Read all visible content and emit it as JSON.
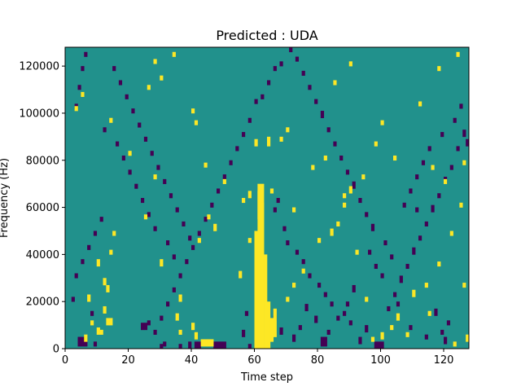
{
  "chart_data": {
    "type": "heatmap",
    "title": "Predicted : UDA",
    "xlabel": "Time step",
    "ylabel": "Frequency (Hz)",
    "xlim": [
      0,
      128
    ],
    "ylim": [
      0,
      128000
    ],
    "x_ticks": [
      0,
      20,
      40,
      60,
      80,
      100,
      120
    ],
    "x_tick_labels": [
      "0",
      "20",
      "40",
      "60",
      "80",
      "100",
      "120"
    ],
    "y_ticks": [
      0,
      20000,
      40000,
      60000,
      80000,
      100000,
      120000
    ],
    "y_tick_labels": [
      "0",
      "20000",
      "40000",
      "60000",
      "80000",
      "100000",
      "120000"
    ],
    "n_time": 128,
    "n_freq": 128,
    "freq_bin_hz": 1000,
    "colormap": "viridis",
    "levels": [
      {
        "name": "low",
        "color": "#440154"
      },
      {
        "name": "mid",
        "color": "#21918c"
      },
      {
        "name": "high",
        "color": "#fde725"
      }
    ],
    "background_level": "mid",
    "grid": false,
    "high_cells": [
      [
        60,
        0,
        50
      ],
      [
        61,
        0,
        70
      ],
      [
        62,
        0,
        70
      ],
      [
        63,
        0,
        40
      ],
      [
        64,
        0,
        20
      ],
      [
        65,
        3,
        10
      ],
      [
        66,
        5,
        12
      ],
      [
        62,
        40,
        22
      ],
      [
        61,
        55,
        12
      ],
      [
        43,
        1,
        3
      ],
      [
        44,
        1,
        3
      ],
      [
        45,
        1,
        3
      ],
      [
        46,
        1,
        3
      ],
      [
        41,
        4,
        3
      ],
      [
        40,
        8,
        3
      ],
      [
        36,
        6,
        2
      ],
      [
        35,
        12,
        3
      ],
      [
        10,
        6,
        3
      ],
      [
        11,
        6,
        2
      ],
      [
        13,
        10,
        3
      ],
      [
        14,
        10,
        3
      ],
      [
        12,
        15,
        3
      ],
      [
        13,
        24,
        3
      ],
      [
        12,
        27,
        3
      ],
      [
        6,
        3,
        3
      ],
      [
        8,
        10,
        2
      ],
      [
        7,
        20,
        3
      ],
      [
        10,
        35,
        3
      ],
      [
        14,
        40,
        2
      ],
      [
        15,
        48,
        2
      ],
      [
        25,
        55,
        2
      ],
      [
        30,
        35,
        3
      ],
      [
        36,
        20,
        3
      ],
      [
        42,
        45,
        2
      ],
      [
        47,
        50,
        3
      ],
      [
        45,
        55,
        2
      ],
      [
        55,
        30,
        3
      ],
      [
        58,
        45,
        2
      ],
      [
        70,
        20,
        2
      ],
      [
        72,
        26,
        2
      ],
      [
        75,
        32,
        2
      ],
      [
        80,
        45,
        2
      ],
      [
        84,
        48,
        3
      ],
      [
        86,
        52,
        2
      ],
      [
        88,
        60,
        2
      ],
      [
        90,
        66,
        3
      ],
      [
        92,
        40,
        2
      ],
      [
        95,
        20,
        2
      ],
      [
        97,
        3,
        2
      ],
      [
        100,
        4,
        3
      ],
      [
        103,
        8,
        2
      ],
      [
        105,
        12,
        3
      ],
      [
        110,
        22,
        3
      ],
      [
        114,
        26,
        2
      ],
      [
        118,
        35,
        2
      ],
      [
        122,
        48,
        2
      ],
      [
        125,
        60,
        2
      ],
      [
        127,
        3,
        3
      ],
      [
        123,
        1,
        2
      ],
      [
        115,
        14,
        2
      ],
      [
        108,
        5,
        2
      ],
      [
        126,
        26,
        2
      ],
      [
        30,
        114,
        2
      ],
      [
        28,
        121,
        2
      ],
      [
        34,
        124,
        2
      ],
      [
        26,
        110,
        2
      ],
      [
        40,
        100,
        2
      ],
      [
        41,
        95,
        2
      ],
      [
        58,
        64,
        3
      ],
      [
        60,
        86,
        3
      ],
      [
        64,
        86,
        4
      ],
      [
        68,
        88,
        2
      ],
      [
        70,
        92,
        2
      ],
      [
        85,
        112,
        2
      ],
      [
        90,
        120,
        2
      ],
      [
        100,
        95,
        2
      ],
      [
        112,
        103,
        2
      ],
      [
        118,
        118,
        2
      ],
      [
        124,
        124,
        2
      ],
      [
        3,
        101,
        2
      ],
      [
        5,
        107,
        2
      ],
      [
        14,
        96,
        2
      ],
      [
        20,
        82,
        2
      ],
      [
        28,
        72,
        2
      ],
      [
        44,
        77,
        2
      ],
      [
        50,
        70,
        2
      ],
      [
        56,
        62,
        2
      ],
      [
        65,
        66,
        2
      ],
      [
        72,
        58,
        2
      ],
      [
        78,
        76,
        2
      ],
      [
        82,
        80,
        2
      ],
      [
        88,
        64,
        2
      ],
      [
        94,
        72,
        2
      ],
      [
        98,
        86,
        2
      ],
      [
        104,
        80,
        2
      ],
      [
        116,
        76,
        2
      ],
      [
        120,
        70,
        2
      ],
      [
        126,
        78,
        2
      ]
    ],
    "low_cells": [
      [
        39,
        0,
        3
      ],
      [
        41,
        0,
        3
      ],
      [
        42,
        0,
        3
      ],
      [
        47,
        0,
        3
      ],
      [
        48,
        0,
        3
      ],
      [
        49,
        0,
        3
      ],
      [
        50,
        0,
        3
      ],
      [
        30,
        0,
        2
      ],
      [
        36,
        0,
        2
      ],
      [
        4,
        1,
        4
      ],
      [
        5,
        1,
        4
      ],
      [
        6,
        1,
        4
      ],
      [
        9,
        1,
        2
      ],
      [
        24,
        8,
        3
      ],
      [
        25,
        8,
        3
      ],
      [
        26,
        10,
        2
      ],
      [
        31,
        1,
        2
      ],
      [
        58,
        0,
        2
      ],
      [
        56,
        5,
        3
      ],
      [
        57,
        14,
        2
      ],
      [
        66,
        12,
        2
      ],
      [
        68,
        6,
        3
      ],
      [
        72,
        3,
        3
      ],
      [
        74,
        8,
        2
      ],
      [
        76,
        16,
        3
      ],
      [
        79,
        11,
        3
      ],
      [
        81,
        1,
        4
      ],
      [
        82,
        1,
        4
      ],
      [
        83,
        6,
        2
      ],
      [
        86,
        12,
        2
      ],
      [
        89,
        18,
        2
      ],
      [
        91,
        24,
        3
      ],
      [
        93,
        2,
        3
      ],
      [
        95,
        7,
        3
      ],
      [
        98,
        0,
        3
      ],
      [
        99,
        0,
        3
      ],
      [
        100,
        0,
        3
      ],
      [
        102,
        16,
        2
      ],
      [
        104,
        22,
        2
      ],
      [
        106,
        28,
        3
      ],
      [
        108,
        34,
        2
      ],
      [
        110,
        40,
        3
      ],
      [
        112,
        46,
        2
      ],
      [
        114,
        52,
        2
      ],
      [
        116,
        58,
        3
      ],
      [
        118,
        64,
        2
      ],
      [
        120,
        70,
        3
      ],
      [
        122,
        76,
        2
      ],
      [
        124,
        84,
        2
      ],
      [
        126,
        90,
        3
      ],
      [
        127,
        86,
        3
      ],
      [
        120,
        2,
        3
      ],
      [
        119,
        6,
        2
      ],
      [
        121,
        10,
        2
      ],
      [
        117,
        14,
        3
      ],
      [
        114,
        4,
        2
      ],
      [
        109,
        8,
        2
      ],
      [
        105,
        18,
        2
      ],
      [
        103,
        38,
        2
      ],
      [
        101,
        44,
        2
      ],
      [
        97,
        50,
        3
      ],
      [
        95,
        56,
        2
      ],
      [
        93,
        62,
        2
      ],
      [
        91,
        68,
        3
      ],
      [
        89,
        74,
        2
      ],
      [
        87,
        80,
        2
      ],
      [
        85,
        86,
        2
      ],
      [
        83,
        92,
        2
      ],
      [
        81,
        98,
        3
      ],
      [
        79,
        104,
        2
      ],
      [
        77,
        110,
        2
      ],
      [
        75,
        116,
        2
      ],
      [
        73,
        122,
        2
      ],
      [
        71,
        126,
        2
      ],
      [
        68,
        120,
        2
      ],
      [
        66,
        118,
        2
      ],
      [
        64,
        112,
        2
      ],
      [
        62,
        106,
        2
      ],
      [
        60,
        104,
        2
      ],
      [
        58,
        96,
        2
      ],
      [
        56,
        90,
        2
      ],
      [
        54,
        84,
        2
      ],
      [
        52,
        78,
        2
      ],
      [
        50,
        72,
        2
      ],
      [
        48,
        66,
        2
      ],
      [
        46,
        60,
        2
      ],
      [
        44,
        54,
        2
      ],
      [
        42,
        48,
        2
      ],
      [
        40,
        42,
        2
      ],
      [
        38,
        36,
        2
      ],
      [
        36,
        30,
        2
      ],
      [
        34,
        24,
        2
      ],
      [
        32,
        18,
        2
      ],
      [
        30,
        12,
        2
      ],
      [
        28,
        6,
        2
      ],
      [
        3,
        102,
        2
      ],
      [
        4,
        110,
        2
      ],
      [
        5,
        118,
        2
      ],
      [
        6,
        124,
        2
      ],
      [
        12,
        92,
        2
      ],
      [
        16,
        86,
        2
      ],
      [
        18,
        80,
        2
      ],
      [
        20,
        74,
        2
      ],
      [
        22,
        68,
        2
      ],
      [
        24,
        62,
        2
      ],
      [
        26,
        56,
        2
      ],
      [
        28,
        50,
        2
      ],
      [
        32,
        44,
        2
      ],
      [
        34,
        38,
        2
      ],
      [
        15,
        118,
        2
      ],
      [
        17,
        112,
        2
      ],
      [
        19,
        106,
        2
      ],
      [
        21,
        100,
        2
      ],
      [
        23,
        94,
        2
      ],
      [
        25,
        88,
        2
      ],
      [
        27,
        82,
        2
      ],
      [
        29,
        76,
        2
      ],
      [
        31,
        70,
        2
      ],
      [
        33,
        64,
        2
      ],
      [
        35,
        58,
        2
      ],
      [
        37,
        52,
        2
      ],
      [
        39,
        46,
        2
      ],
      [
        11,
        54,
        2
      ],
      [
        9,
        48,
        2
      ],
      [
        7,
        42,
        2
      ],
      [
        5,
        36,
        2
      ],
      [
        3,
        30,
        2
      ],
      [
        2,
        20,
        2
      ],
      [
        8,
        14,
        2
      ],
      [
        66,
        58,
        2
      ],
      [
        67,
        62,
        2
      ],
      [
        69,
        50,
        2
      ],
      [
        70,
        44,
        2
      ],
      [
        73,
        40,
        2
      ],
      [
        75,
        36,
        2
      ],
      [
        77,
        30,
        2
      ],
      [
        80,
        26,
        2
      ],
      [
        82,
        22,
        2
      ],
      [
        84,
        18,
        2
      ],
      [
        88,
        14,
        2
      ],
      [
        90,
        10,
        2
      ],
      [
        96,
        40,
        2
      ],
      [
        98,
        34,
        2
      ],
      [
        100,
        30,
        2
      ],
      [
        107,
        60,
        2
      ],
      [
        109,
        66,
        2
      ],
      [
        111,
        72,
        2
      ],
      [
        113,
        78,
        2
      ],
      [
        115,
        84,
        2
      ],
      [
        119,
        90,
        2
      ],
      [
        123,
        96,
        2
      ],
      [
        125,
        102,
        2
      ],
      [
        111,
        58,
        2
      ]
    ]
  }
}
